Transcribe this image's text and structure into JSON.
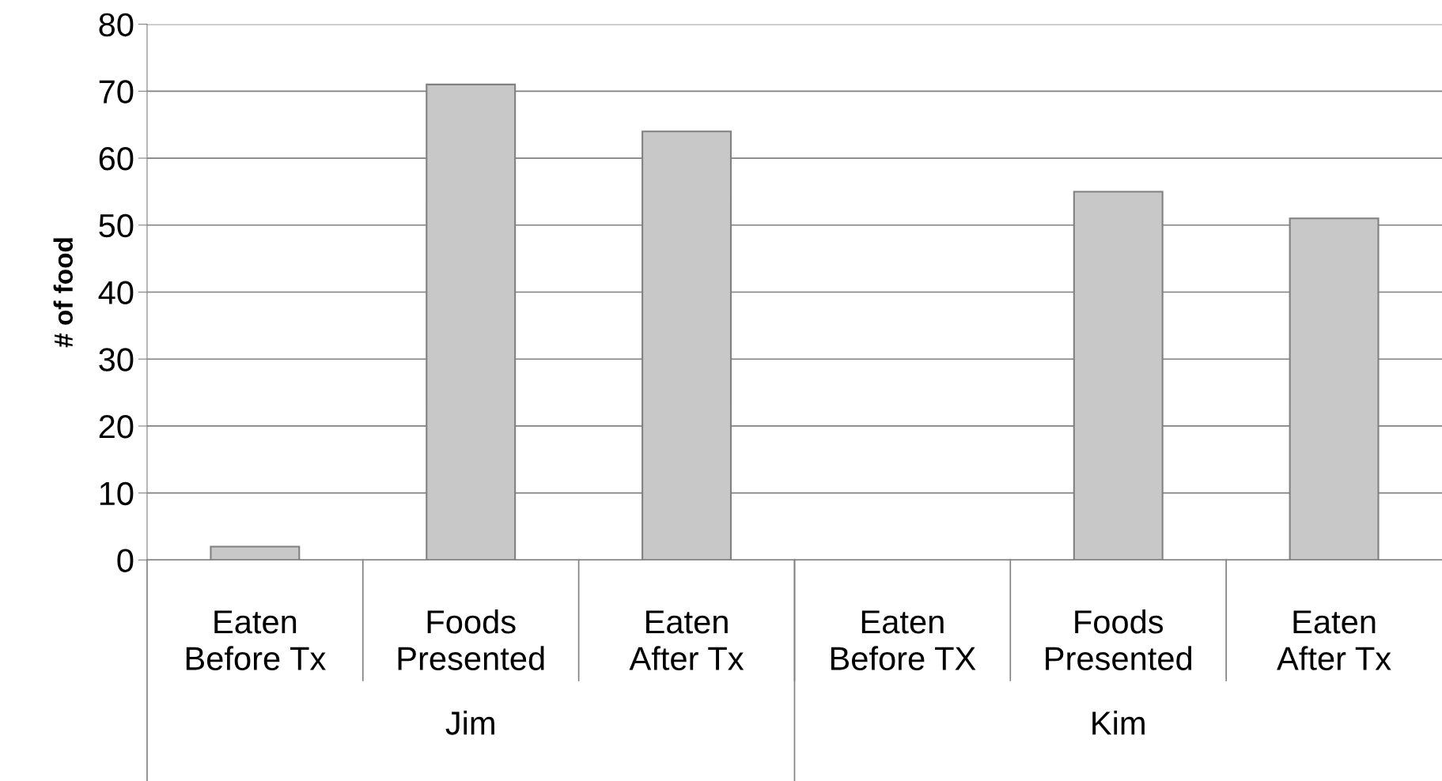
{
  "chart_data": {
    "type": "bar",
    "ylabel": "# of food",
    "categories": [
      "Eaten\nBefore Tx",
      "Foods\nPresented",
      "Eaten\nAfter Tx",
      "Eaten\nBefore TX",
      "Foods\nPresented",
      "Eaten\nAfter Tx"
    ],
    "values": [
      2,
      71,
      64,
      0,
      55,
      51
    ],
    "color": "#c8c8c8",
    "ylim": [
      0,
      80
    ],
    "yticks": [
      0,
      10,
      20,
      30,
      40,
      50,
      60,
      70,
      80
    ],
    "grid": "y",
    "annotations": [
      "Jim",
      "Kim"
    ]
  }
}
